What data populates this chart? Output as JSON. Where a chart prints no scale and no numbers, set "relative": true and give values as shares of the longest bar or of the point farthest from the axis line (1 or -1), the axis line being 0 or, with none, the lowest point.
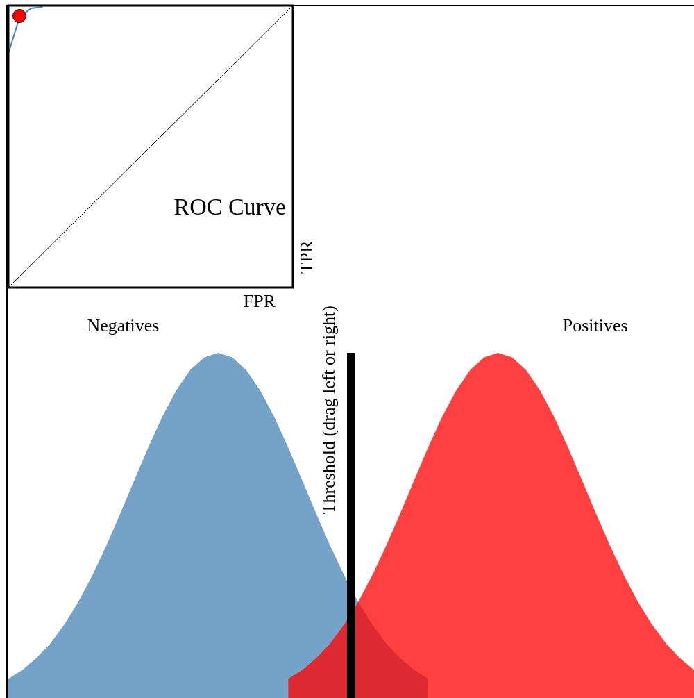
{
  "chart_data": [
    {
      "type": "line",
      "relative": true,
      "xlabel": "FPR",
      "ylabel": "TPR",
      "annotations": [
        "ROC Curve"
      ],
      "grid": false,
      "legend": false,
      "categories": [
        null,
        null,
        null,
        null,
        null,
        null,
        null,
        null,
        null,
        null,
        null,
        null,
        null,
        null,
        null,
        null,
        null,
        null,
        null,
        null,
        null,
        null,
        null,
        null,
        null,
        null
      ],
      "series": [
        {
          "color": "#4682b4",
          "values": [
            0.83,
            0.96,
            0.99,
            0.995,
            null,
            null,
            null,
            null,
            null,
            null,
            null,
            null,
            null,
            null,
            null,
            null,
            null,
            null,
            null,
            null,
            null,
            null,
            null,
            null,
            null,
            null
          ]
        },
        {
          "color": "#000000",
          "values": [
            0,
            0.04,
            0.08,
            0.12,
            0.16,
            0.2,
            0.24,
            0.28,
            0.32,
            0.36,
            0.4,
            0.44,
            0.48,
            0.52,
            0.56,
            0.6,
            0.64,
            0.68,
            0.72,
            0.76,
            0.8,
            0.84,
            0.88,
            0.92,
            0.96,
            1
          ]
        }
      ]
    },
    {
      "type": "area",
      "relative": true,
      "grid": false,
      "legend": false,
      "ref_lines": [
        {
          "axis": "x",
          "label": "Threshold (drag left or right)",
          "color": "#000000"
        }
      ],
      "categories": [
        null,
        null,
        null,
        null,
        null,
        null,
        null,
        null,
        null,
        null,
        null,
        null,
        null,
        null,
        null,
        null,
        null,
        null,
        null,
        null,
        null,
        null,
        null,
        null,
        null,
        null,
        null,
        null,
        null,
        null,
        null,
        null,
        null,
        null,
        null,
        null,
        null,
        null,
        null,
        null,
        null,
        null,
        null,
        null,
        null,
        null,
        null,
        null,
        null,
        null
      ],
      "series": [
        {
          "name": "Negatives",
          "color": "#74a2c8",
          "values": [
            0.056,
            0.081,
            0.115,
            0.158,
            0.213,
            0.278,
            0.355,
            0.441,
            0.534,
            0.631,
            0.726,
            0.815,
            0.891,
            0.95,
            0.987,
            1,
            0.987,
            0.95,
            0.891,
            0.815,
            0.726,
            0.631,
            0.534,
            0.441,
            0.355,
            0.278,
            0.213,
            0.158,
            0.115,
            0.081,
            0.056,
            null,
            null,
            null,
            null,
            null,
            null,
            null,
            null,
            null,
            null,
            null,
            null,
            null,
            null,
            null,
            null,
            null,
            null,
            null
          ]
        },
        {
          "name": "Positives",
          "color": "#ff4040",
          "values": [
            null,
            null,
            null,
            null,
            null,
            null,
            null,
            null,
            null,
            null,
            null,
            null,
            null,
            null,
            null,
            null,
            null,
            null,
            null,
            null,
            0.056,
            0.081,
            0.115,
            0.158,
            0.213,
            0.278,
            0.355,
            0.441,
            0.534,
            0.631,
            0.726,
            0.815,
            0.891,
            0.95,
            0.987,
            1,
            0.987,
            0.95,
            0.891,
            0.815,
            0.726,
            0.631,
            0.534,
            0.441,
            0.355,
            0.278,
            0.213,
            0.158,
            0.115,
            0.081
          ]
        }
      ]
    }
  ]
}
